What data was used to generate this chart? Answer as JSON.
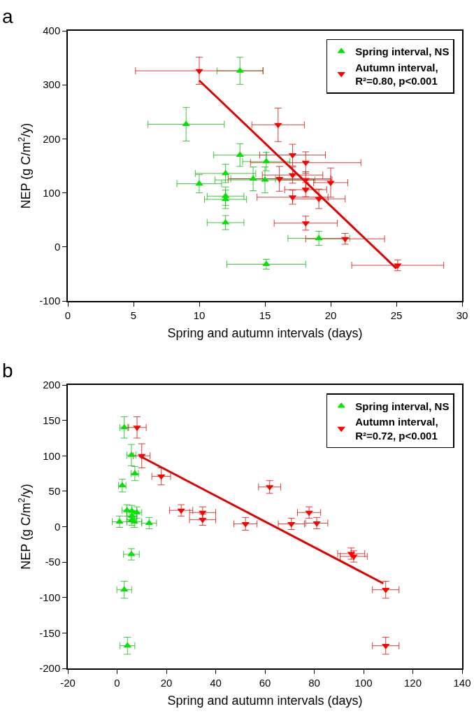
{
  "chart_data": [
    {
      "type": "scatter",
      "annotations": [
        "a"
      ],
      "xlabel": "Spring and autumn intervals (days)",
      "ylabel": "NEP (g C/m$^{2}$/y)",
      "xlim": [
        0,
        30
      ],
      "xticks": [
        0,
        5,
        10,
        15,
        20,
        25,
        30
      ],
      "ylim": [
        -100,
        400
      ],
      "yticks": [
        -100,
        0,
        100,
        200,
        300,
        400
      ],
      "grid": false,
      "legend": "top right",
      "series": [
        {
          "name": "Spring interval, NS",
          "color": "#00e400",
          "marker": "triangle",
          "x": [
            13.1,
            9,
            13.1,
            15.1,
            12,
            10,
            12,
            12,
            12,
            14.1,
            15,
            19.1,
            15.1
          ],
          "values": [
            326,
            227,
            170,
            158,
            136,
            117,
            94,
            88,
            45,
            126,
            124,
            16,
            -32
          ],
          "xerrors": [
            1.75,
            2.9,
            2,
            1.8,
            2.3,
            1.7,
            1.4,
            1.6,
            1.4,
            1.7,
            3.8,
            2.35,
            3
          ],
          "errors": [
            25,
            31,
            21,
            17,
            17,
            17,
            17,
            17,
            13,
            22,
            24,
            13,
            9
          ]
        },
        {
          "name": "Autumn interval,\nR²=0.80, p<0.001",
          "color": "#ff0000",
          "marker": "triangle-down",
          "x": [
            10,
            16,
            17.1,
            18.1,
            16.1,
            17.1,
            18.1,
            20,
            18.1,
            17.1,
            19.1,
            18.1,
            21.1,
            25.1
          ],
          "values": [
            326,
            226,
            170,
            156,
            126,
            133,
            124,
            119,
            106,
            92,
            89,
            44,
            15,
            -34
          ],
          "xerrors": [
            4.85,
            2,
            2.5,
            4.2,
            3.9,
            2.3,
            2,
            1.3,
            1.6,
            2.7,
            2,
            2.4,
            3,
            3.5
          ],
          "errors": [
            25,
            31,
            20,
            20,
            23,
            15,
            15,
            27,
            13,
            13,
            18,
            13,
            10,
            10
          ]
        },
        {
          "type": "line",
          "color": "#e00000",
          "marker": "none",
          "x": [
            10,
            25
          ],
          "values": [
            308,
            -40
          ]
        }
      ]
    },
    {
      "type": "scatter",
      "annotations": [
        "b"
      ],
      "xlabel": "Spring and autumn intervals (days)",
      "ylabel": "NEP (g C/m$^{2}$/y)",
      "xlim": [
        -20,
        140
      ],
      "xticks": [
        -20,
        0,
        20,
        40,
        60,
        80,
        100,
        120,
        140
      ],
      "ylim": [
        -200,
        200
      ],
      "yticks": [
        -200,
        -150,
        -100,
        -50,
        0,
        50,
        100,
        150,
        200
      ],
      "grid": false,
      "legend": "top right",
      "series": [
        {
          "name": "Spring interval, NS",
          "color": "#00e400",
          "marker": "triangle",
          "x": [
            2.9,
            5.8,
            7.2,
            2.1,
            4,
            6,
            8,
            6,
            1,
            7,
            13,
            6,
            5.8,
            2.9,
            4.2
          ],
          "values": [
            140,
            101,
            75,
            58,
            23,
            22,
            20,
            15,
            7,
            7,
            5,
            10,
            -39,
            -89,
            -168
          ],
          "xerrors": [
            1.8,
            1.8,
            1.5,
            1.5,
            2,
            2,
            2,
            2,
            3,
            3,
            3,
            2,
            3.2,
            3,
            3
          ],
          "errors": [
            15,
            15,
            10,
            9,
            8,
            8,
            8,
            8,
            8,
            8,
            8,
            8,
            8,
            12,
            12
          ]
        },
        {
          "name": "Autumn interval,\nR²=0.72, p<0.001",
          "color": "#ff0000",
          "marker": "triangle-down",
          "x": [
            8.1,
            10,
            17.9,
            26,
            34.7,
            34.7,
            52.1,
            61.9,
            70.7,
            77.9,
            81,
            95,
            96,
            109,
            109
          ],
          "values": [
            140,
            100,
            71,
            23,
            20,
            10,
            4,
            56,
            4,
            20,
            5,
            -38,
            -42,
            -89,
            -168
          ],
          "xerrors": [
            3.7,
            3.4,
            3.8,
            4.7,
            5.3,
            5.3,
            4.7,
            4.5,
            5.3,
            4.7,
            4.5,
            5.5,
            5.5,
            5.4,
            5.4
          ],
          "errors": [
            15,
            17,
            12,
            8,
            8,
            8,
            9,
            9,
            8,
            8,
            8,
            8,
            8,
            12,
            12
          ]
        },
        {
          "type": "line",
          "color": "#e00000",
          "marker": "none",
          "x": [
            9,
            108
          ],
          "values": [
            100,
            -80
          ]
        }
      ]
    }
  ]
}
